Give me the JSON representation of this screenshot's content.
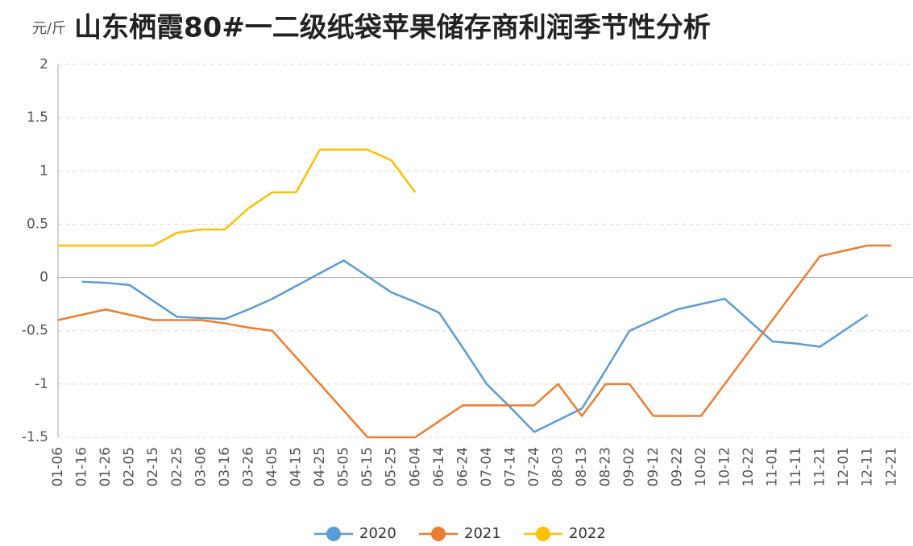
{
  "chart_data": {
    "type": "line",
    "title": "山东栖霞80#一二级纸袋苹果储存商利润季节性分析",
    "y_label": "元/斤",
    "categories": [
      "01-06",
      "01-16",
      "01-26",
      "02-05",
      "02-15",
      "02-25",
      "03-06",
      "03-16",
      "03-26",
      "04-05",
      "04-15",
      "04-25",
      "05-05",
      "05-15",
      "05-25",
      "06-04",
      "06-14",
      "06-24",
      "07-04",
      "07-14",
      "07-24",
      "08-03",
      "08-13",
      "08-23",
      "09-02",
      "09-12",
      "09-22",
      "10-02",
      "10-12",
      "10-22",
      "11-01",
      "11-11",
      "11-21",
      "12-01",
      "12-11",
      "12-21"
    ],
    "series": [
      {
        "name": "2020",
        "color": "#5b9bd5",
        "values": [
          null,
          -0.04,
          -0.05,
          -0.07,
          -0.22,
          -0.37,
          -0.38,
          -0.39,
          -0.3,
          -0.2,
          -0.08,
          0.04,
          0.16,
          0.01,
          -0.14,
          -0.23,
          -0.33,
          -0.66,
          -1.0,
          -1.22,
          -1.45,
          -1.34,
          -1.23,
          -0.87,
          -0.5,
          -0.4,
          -0.3,
          -0.25,
          -0.2,
          -0.4,
          -0.6,
          -0.62,
          -0.65,
          -0.5,
          -0.35,
          null
        ]
      },
      {
        "name": "2021",
        "color": "#ed7d31",
        "values": [
          -0.4,
          -0.35,
          -0.3,
          -0.35,
          -0.4,
          -0.4,
          -0.4,
          -0.43,
          -0.47,
          -0.5,
          -0.75,
          -1.0,
          -1.25,
          -1.5,
          -1.5,
          -1.5,
          -1.35,
          -1.2,
          -1.2,
          -1.2,
          -1.2,
          -1.0,
          -1.3,
          -1.0,
          -1.0,
          -1.3,
          -1.3,
          -1.3,
          -1.0,
          -0.7,
          -0.4,
          -0.1,
          0.2,
          0.25,
          0.3,
          0.3
        ]
      },
      {
        "name": "2022",
        "color": "#ffc000",
        "values": [
          0.3,
          0.3,
          0.3,
          0.3,
          0.3,
          0.42,
          0.45,
          0.45,
          0.65,
          0.8,
          0.8,
          1.2,
          1.2,
          1.2,
          1.1,
          0.8,
          null,
          null,
          null,
          null,
          null,
          null,
          null,
          null,
          null,
          null,
          null,
          null,
          null,
          null,
          null,
          null,
          null,
          null,
          null,
          null
        ]
      }
    ],
    "ylim": [
      -1.5,
      2
    ],
    "yticks": [
      2,
      1.5,
      1,
      0.5,
      0,
      -0.5,
      -1,
      -1.5
    ],
    "grid": true
  }
}
